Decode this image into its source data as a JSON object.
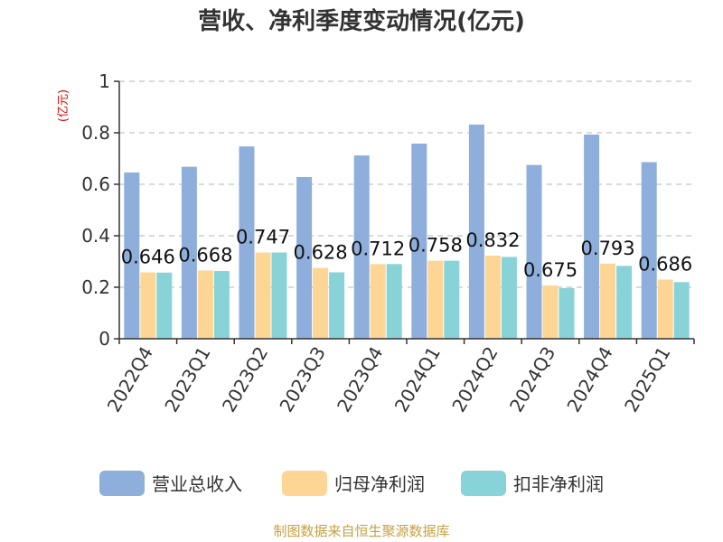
{
  "chart_data": {
    "type": "bar",
    "title": "营收、净利季度变动情况(亿元)",
    "unit_label": "(亿元)",
    "categories": [
      "2022Q4",
      "2023Q1",
      "2023Q2",
      "2023Q3",
      "2023Q4",
      "2024Q1",
      "2024Q2",
      "2024Q3",
      "2024Q4",
      "2025Q1"
    ],
    "series": [
      {
        "name": "营业总收入",
        "color": "#8eaedb",
        "values": [
          0.646,
          0.668,
          0.747,
          0.628,
          0.712,
          0.758,
          0.832,
          0.675,
          0.793,
          0.686
        ]
      },
      {
        "name": "归母净利润",
        "color": "#fdd595",
        "values": [
          0.258,
          0.265,
          0.335,
          0.275,
          0.29,
          0.303,
          0.323,
          0.207,
          0.292,
          0.23
        ]
      },
      {
        "name": "扣非净利润",
        "color": "#88d3d8",
        "values": [
          0.257,
          0.263,
          0.335,
          0.258,
          0.29,
          0.303,
          0.318,
          0.197,
          0.283,
          0.22
        ]
      }
    ],
    "data_labels": [
      "0.646",
      "0.668",
      "0.747",
      "0.628",
      "0.712",
      "0.758",
      "0.832",
      "0.675",
      "0.793",
      "0.686"
    ],
    "ylim": [
      0,
      1
    ],
    "yticks": [
      0,
      0.2,
      0.4,
      0.6,
      0.8,
      1
    ],
    "ytick_labels": [
      "0",
      "0.2",
      "0.4",
      "0.6",
      "0.8",
      "1"
    ],
    "grid": true,
    "legend_position": "bottom"
  },
  "source_text": "制图数据来自恒生聚源数据库"
}
